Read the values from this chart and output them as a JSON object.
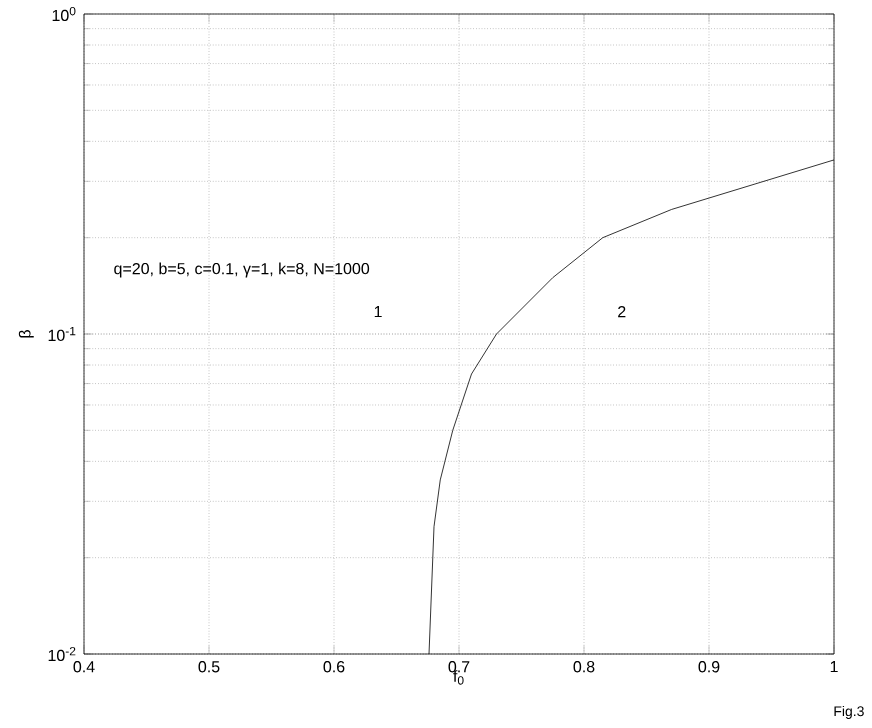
{
  "chart_data": {
    "type": "line",
    "xlabel": "f$_{0}$",
    "ylabel": "β",
    "x": [
      0.676,
      0.68,
      0.685,
      0.695,
      0.71,
      0.73,
      0.775,
      0.815,
      0.87,
      1.0
    ],
    "series": [
      {
        "color": "#000000",
        "values": [
          0.01,
          0.025,
          0.035,
          0.05,
          0.075,
          0.1,
          0.15,
          0.2,
          0.245,
          0.35
        ]
      }
    ],
    "xlim": [
      0.4,
      1
    ],
    "ylim": [
      0.01,
      1
    ],
    "xticks": [
      0.4,
      0.5,
      0.6,
      0.7,
      0.8,
      0.9,
      1
    ],
    "yticks": [
      {
        "value": 0.01,
        "label": "10$^{-2}$"
      },
      {
        "value": 0.1,
        "label": "10$^{-1}$"
      },
      {
        "value": 1,
        "label": "10$^{0}$"
      }
    ],
    "log": "y",
    "grid": true,
    "marker": "none",
    "line_style": "solid",
    "annotations": [
      "q=20, b=5, c=0.1, γ=1, k=8, N=1000",
      "1",
      "2",
      "Fig.3"
    ]
  }
}
